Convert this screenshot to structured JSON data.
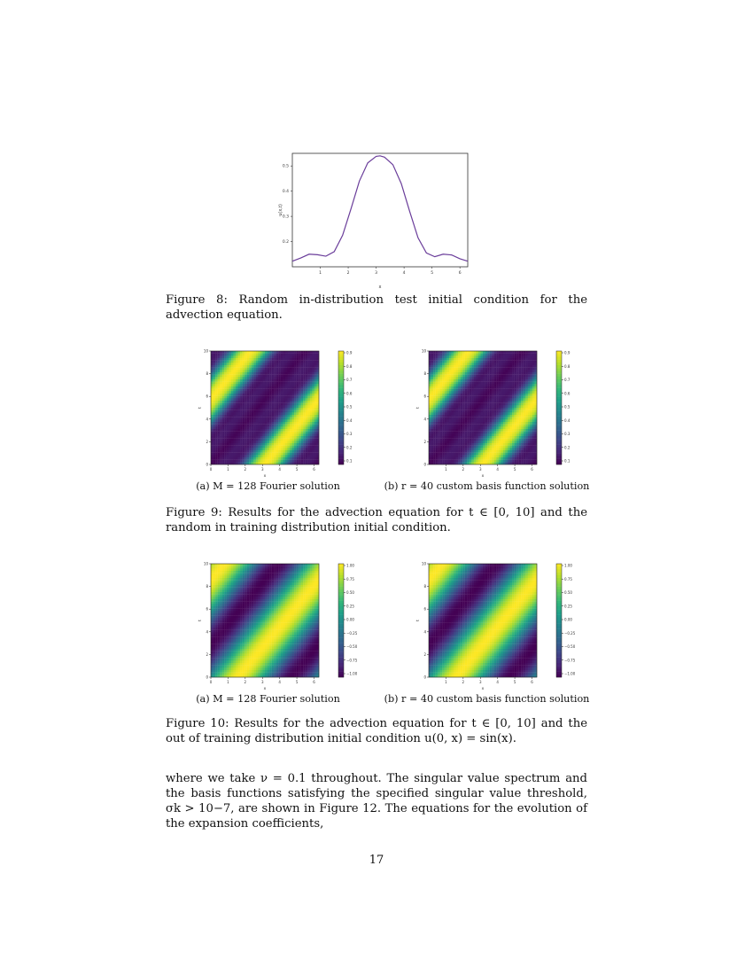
{
  "figure8": {
    "chart_data": {
      "type": "line",
      "ylabel": "u(x,t)",
      "xlabel": "x",
      "xlim": [
        0,
        6.28
      ],
      "ylim": [
        0.1,
        0.55
      ],
      "xticks": [
        "1",
        "2",
        "3",
        "4",
        "5",
        "6"
      ],
      "yticks": [
        "0.2",
        "0.3",
        "0.4",
        "0.5"
      ],
      "series_color": "#6a3d9a",
      "x": [
        0,
        0.3,
        0.6,
        0.9,
        1.2,
        1.5,
        1.8,
        2.1,
        2.4,
        2.7,
        3.0,
        3.14,
        3.3,
        3.6,
        3.9,
        4.2,
        4.5,
        4.8,
        5.1,
        5.4,
        5.7,
        6.0,
        6.28
      ],
      "y": [
        0.122,
        0.135,
        0.15,
        0.148,
        0.142,
        0.16,
        0.225,
        0.33,
        0.44,
        0.512,
        0.538,
        0.54,
        0.535,
        0.505,
        0.43,
        0.32,
        0.215,
        0.155,
        0.14,
        0.15,
        0.147,
        0.132,
        0.122
      ]
    },
    "caption": "Figure 8: Random in-distribution test initial condition for the advection equation."
  },
  "figure9": {
    "caption": "Figure 9: Results for the advection equation for t ∈ [0, 10] and the random in training distribution initial condition.",
    "panels": [
      {
        "subcaption": "(a) M = 128 Fourier solution",
        "chart_data": {
          "type": "heatmap",
          "xlabel": "x",
          "ylabel": "t",
          "xticks": [
            "0",
            "1",
            "2",
            "3",
            "4",
            "5",
            "6"
          ],
          "yticks": [
            "0",
            "2",
            "4",
            "6",
            "8",
            "10"
          ],
          "colorbar_ticks": [
            "0.9",
            "0.8",
            "0.7",
            "0.6",
            "0.5",
            "0.4",
            "0.3",
            "0.2",
            "0.1"
          ],
          "colormap": "viridis"
        }
      },
      {
        "subcaption": "(b) r = 40 custom basis function solution",
        "chart_data": {
          "type": "heatmap",
          "xlabel": "x",
          "ylabel": "t",
          "xticks": [
            "1",
            "2",
            "3",
            "4",
            "5",
            "6"
          ],
          "yticks": [
            "0",
            "2",
            "4",
            "6",
            "8",
            "10"
          ],
          "colorbar_ticks": [
            "0.9",
            "0.8",
            "0.7",
            "0.6",
            "0.5",
            "0.4",
            "0.3",
            "0.2",
            "0.1"
          ],
          "colormap": "viridis"
        }
      }
    ]
  },
  "figure10": {
    "caption": "Figure 10: Results for the advection equation for t ∈ [0, 10] and the out of training distribution initial condition u(0, x) = sin(x).",
    "panels": [
      {
        "subcaption": "(a) M = 128 Fourier solution",
        "chart_data": {
          "type": "heatmap",
          "xlabel": "x",
          "ylabel": "t",
          "xticks": [
            "0",
            "1",
            "2",
            "3",
            "4",
            "5",
            "6"
          ],
          "yticks": [
            "0",
            "2",
            "4",
            "6",
            "8",
            "10"
          ],
          "colorbar_ticks": [
            "1.00",
            "0.75",
            "0.50",
            "0.25",
            "0.00",
            "−0.25",
            "−0.50",
            "−0.75",
            "−1.00"
          ],
          "colormap": "viridis"
        }
      },
      {
        "subcaption": "(b) r = 40 custom basis function solution",
        "chart_data": {
          "type": "heatmap",
          "xlabel": "x",
          "ylabel": "t",
          "xticks": [
            "1",
            "2",
            "3",
            "4",
            "5",
            "6"
          ],
          "yticks": [
            "0",
            "2",
            "4",
            "6",
            "8",
            "10"
          ],
          "colorbar_ticks": [
            "1.00",
            "0.75",
            "0.50",
            "0.25",
            "0.00",
            "−0.25",
            "−0.50",
            "−0.75",
            "−1.00"
          ],
          "colormap": "viridis"
        }
      }
    ]
  },
  "body_text": "where we take ν = 0.1 throughout. The singular value spectrum and the basis functions satisfying the specified singular value threshold, σk > 10−7, are shown in Figure 12. The equations for the evolution of the expansion coefficients,",
  "page_number": "17"
}
